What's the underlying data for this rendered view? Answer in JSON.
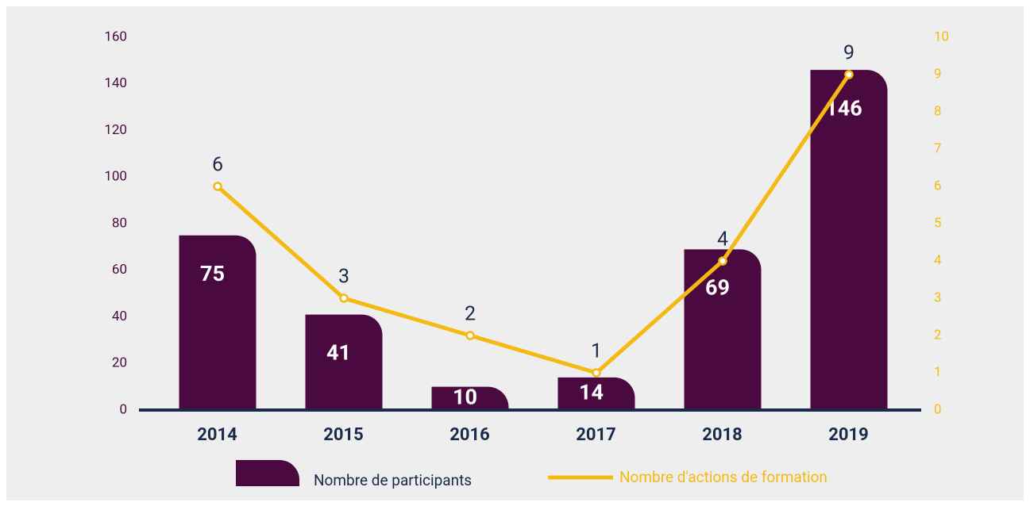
{
  "chart_data": {
    "type": "bar",
    "categories": [
      "2014",
      "2015",
      "2016",
      "2017",
      "2018",
      "2019"
    ],
    "series": [
      {
        "name": "Nombre de participants",
        "type": "bar",
        "color": "#4b0a3f",
        "values": [
          75,
          41,
          10,
          14,
          69,
          146
        ]
      },
      {
        "name": "Nombre d'actions de formation",
        "type": "line",
        "axis": "y2",
        "color": "#f5b914",
        "values": [
          6,
          3,
          2,
          1,
          4,
          9
        ]
      }
    ],
    "ylim": [
      0,
      160
    ],
    "yticks": [
      0,
      20,
      40,
      60,
      80,
      100,
      120,
      140,
      160
    ],
    "y2lim": [
      0,
      10
    ],
    "y2ticks": [
      0,
      1,
      2,
      3,
      4,
      5,
      6,
      7,
      8,
      9,
      10
    ],
    "legend": "bottom"
  }
}
